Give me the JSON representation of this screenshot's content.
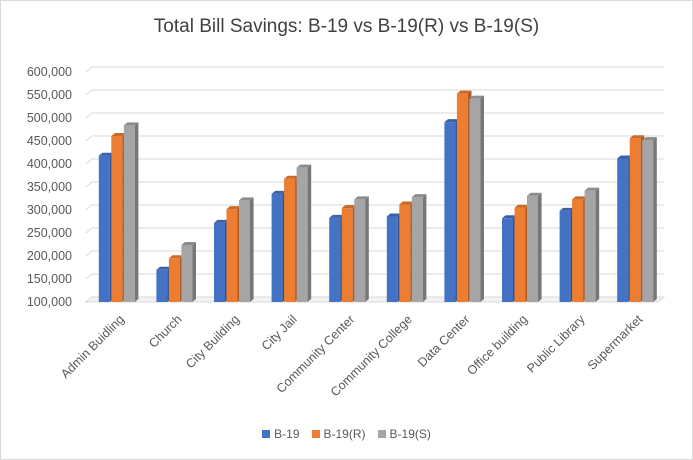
{
  "chart_data": {
    "type": "bar",
    "title": "Total Bill Savings: B-19 vs B-19(R) vs B-19(S)",
    "categories": [
      "Admin Buidling",
      "Church",
      "City Building",
      "City Jail",
      "Community Center",
      "Community College",
      "Data Center",
      "Office building",
      "Public Library",
      "Supermarket"
    ],
    "series": [
      {
        "name": "B-19",
        "color": "#4472c4",
        "values": [
          418000,
          170000,
          272000,
          335000,
          283000,
          286000,
          491000,
          282000,
          298000,
          412000
        ]
      },
      {
        "name": "B-19(R)",
        "color": "#ed7d31",
        "values": [
          461000,
          195000,
          302000,
          368000,
          304000,
          312000,
          553000,
          305000,
          323000,
          456000
        ]
      },
      {
        "name": "B-19(S)",
        "color": "#a5a5a5",
        "values": [
          484000,
          224000,
          321000,
          392000,
          323000,
          328000,
          542000,
          331000,
          342000,
          452000
        ]
      }
    ],
    "ylim": [
      100000,
      600000
    ],
    "yticks": [
      "100,000",
      "150,000",
      "200,000",
      "250,000",
      "300,000",
      "350,000",
      "400,000",
      "450,000",
      "500,000",
      "550,000",
      "600,000"
    ],
    "grid": true,
    "legend": "bottom",
    "style": "3d-clustered-column"
  }
}
